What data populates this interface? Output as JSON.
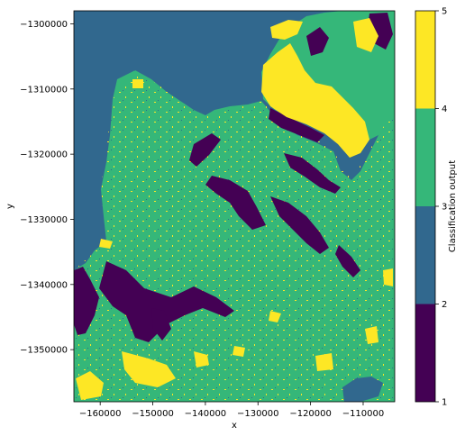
{
  "chart_data": {
    "type": "heatmap",
    "xlabel": "x",
    "ylabel": "y",
    "xlim": [
      -165000,
      -104000
    ],
    "ylim": [
      -1358000,
      -1298000
    ],
    "xticks": [
      -160000,
      -150000,
      -140000,
      -130000,
      -120000,
      -110000
    ],
    "xtick_labels": [
      "−160000",
      "−150000",
      "−140000",
      "−130000",
      "−120000",
      "−110000"
    ],
    "yticks": [
      -1300000,
      -1310000,
      -1320000,
      -1330000,
      -1340000,
      -1350000
    ],
    "ytick_labels": [
      "−1300000",
      "−1310000",
      "−1320000",
      "−1330000",
      "−1340000",
      "−1350000"
    ],
    "colorbar": {
      "label": "Classification output",
      "range": [
        1,
        5
      ],
      "ticks": [
        1,
        2,
        3,
        4,
        5
      ],
      "tick_labels": [
        "1",
        "2",
        "3",
        "4",
        "5"
      ],
      "classes": [
        {
          "from": 1,
          "to": 2,
          "color": "#440154"
        },
        {
          "from": 2,
          "to": 3,
          "color": "#31688e"
        },
        {
          "from": 3,
          "to": 4,
          "color": "#35b779"
        },
        {
          "from": 4,
          "to": 5,
          "color": "#fde725"
        }
      ]
    }
  }
}
